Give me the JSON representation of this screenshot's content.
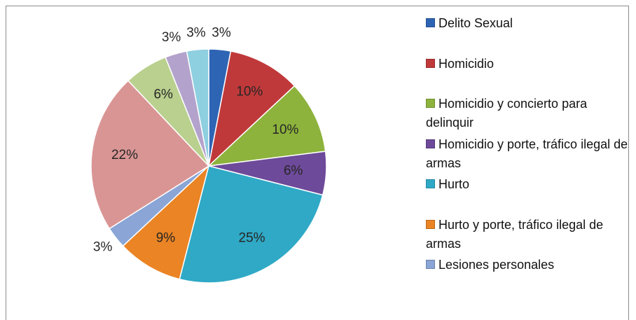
{
  "chart_data": {
    "type": "pie",
    "categories": [
      "Delito Sexual",
      "Homicidio",
      "Homicidio y concierto para delinquir",
      "Homicidio y porte, tráfico ilegal de armas",
      "Hurto",
      "Hurto y  porte, tráfico ilegal de armas",
      "Lesiones personales",
      null,
      null,
      null,
      null
    ],
    "values": [
      3,
      10,
      10,
      6,
      25,
      9,
      3,
      22,
      6,
      3,
      3
    ],
    "value_labels": [
      "3%",
      "10%",
      "10%",
      "6%",
      "25%",
      "9%",
      "3%",
      "22%",
      "6%",
      "3%",
      "3%"
    ],
    "colors": [
      "#2e64b4",
      "#c0393a",
      "#8db33c",
      "#6e4a9a",
      "#2fa9c6",
      "#ea8424",
      "#8aa5d6",
      "#d99594",
      "#b9d08e",
      "#b3a3cc",
      "#8ecfe0"
    ]
  }
}
